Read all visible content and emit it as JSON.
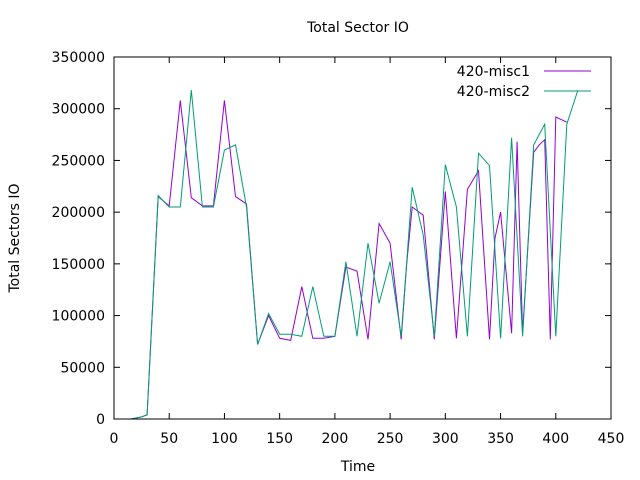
{
  "chart_data": {
    "type": "line",
    "title": "Total Sector IO",
    "xlabel": "Time",
    "ylabel": "Total Sectors IO",
    "xlim": [
      0,
      450
    ],
    "ylim": [
      0,
      350000
    ],
    "xticks": [
      0,
      50,
      100,
      150,
      200,
      250,
      300,
      350,
      400,
      450
    ],
    "yticks": [
      0,
      50000,
      100000,
      150000,
      200000,
      250000,
      300000,
      350000
    ],
    "grid": false,
    "legend": "top-right",
    "series": [
      {
        "name": "420-misc1",
        "color": "#9400d3",
        "x": [
          15,
          20,
          25,
          30,
          40,
          50,
          60,
          70,
          80,
          90,
          100,
          110,
          120,
          130,
          140,
          150,
          160,
          170,
          180,
          190,
          200,
          210,
          220,
          230,
          240,
          250,
          260,
          265,
          270,
          280,
          290,
          300,
          310,
          320,
          330,
          340,
          345,
          350,
          360,
          365,
          370,
          380,
          385,
          390,
          395,
          400,
          410
        ],
        "y": [
          0,
          1000,
          2000,
          4000,
          215000,
          206000,
          308000,
          214000,
          206000,
          206000,
          308000,
          215000,
          208000,
          72000,
          100000,
          78000,
          76000,
          128000,
          78000,
          78000,
          80000,
          147000,
          143000,
          77000,
          189000,
          170000,
          77000,
          150000,
          205000,
          197000,
          77000,
          220000,
          78000,
          222000,
          240000,
          77000,
          175000,
          200000,
          83000,
          268000,
          83000,
          258000,
          265000,
          270000,
          77000,
          292000,
          287000
        ]
      },
      {
        "name": "420-misc2",
        "color": "#009e73",
        "x": [
          15,
          20,
          25,
          30,
          40,
          50,
          60,
          70,
          80,
          90,
          100,
          110,
          120,
          130,
          140,
          150,
          160,
          170,
          180,
          190,
          200,
          210,
          220,
          230,
          240,
          250,
          260,
          270,
          280,
          290,
          300,
          310,
          320,
          330,
          340,
          350,
          360,
          370,
          380,
          390,
          400,
          410,
          420
        ],
        "y": [
          0,
          1000,
          2000,
          4000,
          216000,
          205000,
          205000,
          318000,
          205000,
          205000,
          260000,
          265000,
          205000,
          72000,
          102000,
          82000,
          82000,
          80000,
          128000,
          80000,
          80000,
          152000,
          80000,
          170000,
          112000,
          152000,
          80000,
          224000,
          178000,
          80000,
          246000,
          205000,
          80000,
          257000,
          245000,
          78000,
          272000,
          80000,
          265000,
          285000,
          80000,
          285000,
          318000
        ]
      }
    ]
  }
}
